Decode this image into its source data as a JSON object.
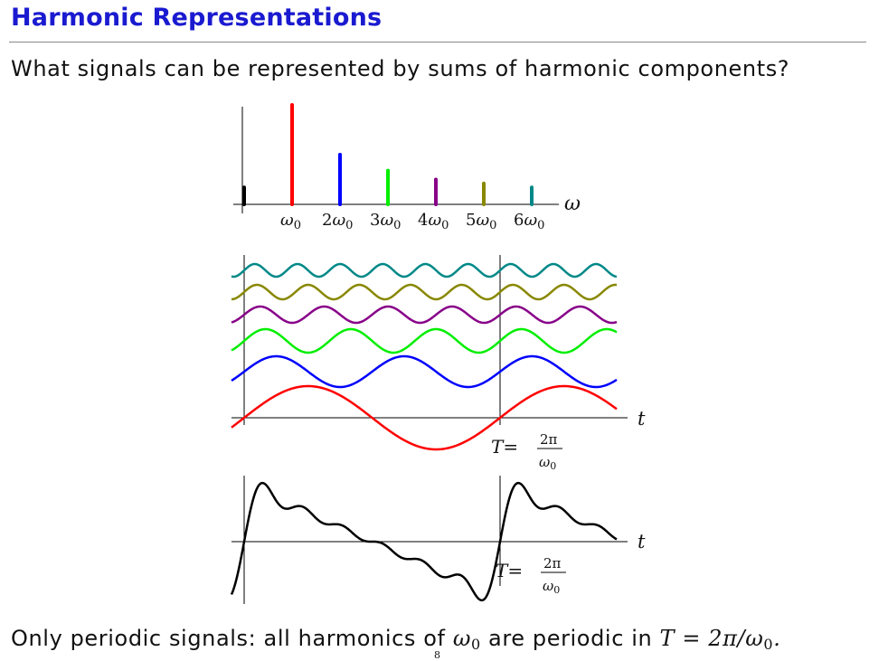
{
  "slide": {
    "title": "Harmonic Representations",
    "question": "What signals can be represented by sums of harmonic components?",
    "conclusion_text": "Only periodic signals:  all harmonics of",
    "conclusion_mid": "are periodic in",
    "page_number": "8"
  },
  "spectrum": {
    "axis_label": "ω",
    "harmonics": [
      {
        "multiple": 0,
        "label": "",
        "magnitude": 0.17,
        "color": "#000000"
      },
      {
        "multiple": 1,
        "label": "ω0",
        "magnitude": 1.0,
        "color": "#ff0000"
      },
      {
        "multiple": 2,
        "label": "2ω0",
        "magnitude": 0.5,
        "color": "#0000ff"
      },
      {
        "multiple": 3,
        "label": "3ω0",
        "magnitude": 0.34,
        "color": "#00ee00"
      },
      {
        "multiple": 4,
        "label": "4ω0",
        "magnitude": 0.25,
        "color": "#880088"
      },
      {
        "multiple": 5,
        "label": "5ω0",
        "magnitude": 0.21,
        "color": "#888800"
      },
      {
        "multiple": 6,
        "label": "6ω0",
        "magnitude": 0.17,
        "color": "#008888"
      }
    ]
  },
  "components_plot": {
    "axis_label": "t",
    "period_label": "T=",
    "period_num": "2π",
    "period_den": "ω0"
  },
  "sum_plot": {
    "axis_label": "t",
    "period_label": "T=",
    "period_num": "2π",
    "period_den": "ω0",
    "color": "#000000"
  },
  "conclusion_math": {
    "omega0": "ω",
    "sub": "0",
    "equation": "T = 2π/ω"
  }
}
